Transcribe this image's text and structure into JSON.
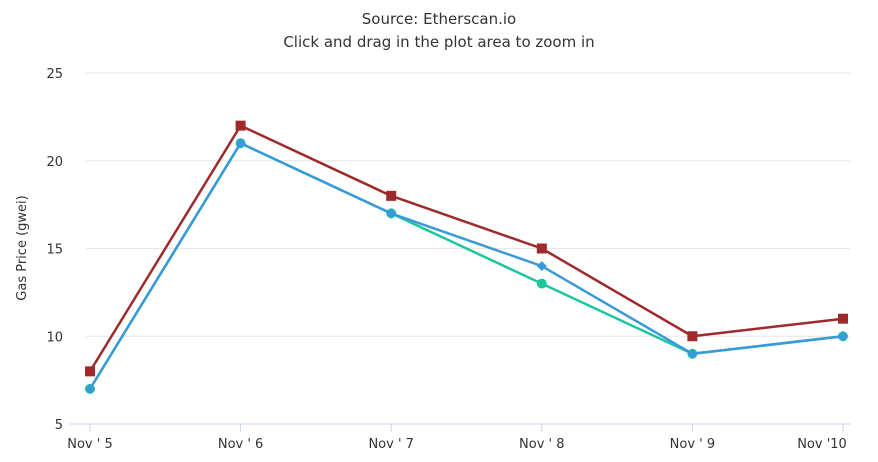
{
  "chart_data": {
    "type": "line",
    "title_lines": [
      "Source: Etherscan.io",
      "Click and drag in the plot area to zoom in"
    ],
    "xlabel": "",
    "ylabel": "Gas Price (gwei)",
    "categories": [
      "Nov ' 5",
      "Nov ' 6",
      "Nov ' 7",
      "Nov ' 8",
      "Nov ' 9",
      "Nov '10"
    ],
    "ylim": [
      5,
      25
    ],
    "yticks": [
      5,
      10,
      15,
      20,
      25
    ],
    "grid": true,
    "series": [
      {
        "name": "",
        "color": "#1ec6a0",
        "marker": "circle",
        "values": [
          7,
          21,
          17,
          13,
          9,
          10
        ]
      },
      {
        "name": "",
        "color": "#3a9ad9",
        "marker": "diamond",
        "values": [
          7,
          21,
          17,
          14,
          9,
          10
        ]
      },
      {
        "name": "",
        "color": "#9e2a2b",
        "marker": "square",
        "values": [
          8,
          22,
          18,
          15,
          10,
          11
        ]
      }
    ]
  }
}
